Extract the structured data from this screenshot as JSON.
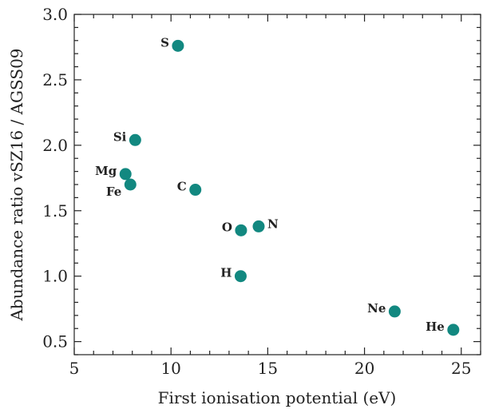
{
  "chart_data": {
    "type": "scatter",
    "title": "",
    "xlabel": "First ionisation potential (eV)",
    "ylabel": "Abundance ratio vSZ16 / AGSS09",
    "xlim": [
      5,
      26
    ],
    "ylim": [
      0.4,
      3.0
    ],
    "xticks": [
      5,
      10,
      15,
      20,
      25
    ],
    "xtick_labels": [
      "5",
      "10",
      "15",
      "20",
      "25"
    ],
    "yticks": [
      0.5,
      1.0,
      1.5,
      2.0,
      2.5,
      3.0
    ],
    "ytick_labels": [
      "0.5",
      "1.0",
      "1.5",
      "2.0",
      "2.5",
      "3.0"
    ],
    "grid": false,
    "marker_color": "#128880",
    "points": [
      {
        "label": "S",
        "x": 10.36,
        "y": 2.76,
        "label_pos": "left"
      },
      {
        "label": "Si",
        "x": 8.15,
        "y": 2.04,
        "label_pos": "left"
      },
      {
        "label": "Mg",
        "x": 7.65,
        "y": 1.78,
        "label_pos": "left"
      },
      {
        "label": "Fe",
        "x": 7.9,
        "y": 1.7,
        "label_pos": "left-below"
      },
      {
        "label": "C",
        "x": 11.26,
        "y": 1.66,
        "label_pos": "left"
      },
      {
        "label": "O",
        "x": 13.62,
        "y": 1.35,
        "label_pos": "left"
      },
      {
        "label": "N",
        "x": 14.53,
        "y": 1.38,
        "label_pos": "right"
      },
      {
        "label": "H",
        "x": 13.6,
        "y": 1.0,
        "label_pos": "left"
      },
      {
        "label": "Ne",
        "x": 21.56,
        "y": 0.73,
        "label_pos": "left"
      },
      {
        "label": "He",
        "x": 24.59,
        "y": 0.59,
        "label_pos": "left"
      }
    ]
  }
}
